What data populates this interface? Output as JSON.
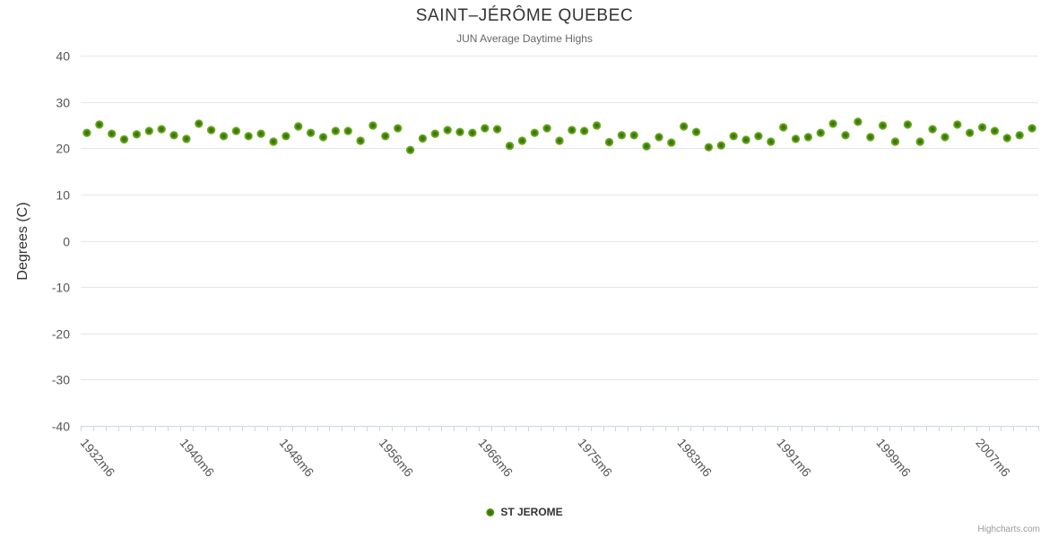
{
  "chart_data": {
    "type": "scatter",
    "title": "SAINT–JÉRÔME QUEBEC",
    "subtitle": "JUN Average Daytime Highs",
    "ylabel": "Degrees (C)",
    "ylim": [
      -40,
      40
    ],
    "yticks": [
      40,
      30,
      20,
      10,
      0,
      -10,
      -20,
      -30,
      -40
    ],
    "grid": "horizontal-only",
    "legend_position": "bottom-center",
    "xtick_label_every": 8,
    "categories": [
      "1932m6",
      "1933m6",
      "1934m6",
      "1935m6",
      "1936m6",
      "1937m6",
      "1938m6",
      "1939m6",
      "1940m6",
      "1941m6",
      "1942m6",
      "1943m6",
      "1944m6",
      "1945m6",
      "1946m6",
      "1947m6",
      "1948m6",
      "1949m6",
      "1950m6",
      "1951m6",
      "1952m6",
      "1953m6",
      "1954m6",
      "1955m6",
      "1956m6",
      "1957m6",
      "1959m6",
      "1960m6",
      "1961m6",
      "1962m6",
      "1964m6",
      "1965m6",
      "1966m6",
      "1967m6",
      "1968m6",
      "1969m6",
      "1971m6",
      "1972m6",
      "1973m6",
      "1974m6",
      "1975m6",
      "1976m6",
      "1977m6",
      "1978m6",
      "1979m6",
      "1980m6",
      "1981m6",
      "1982m6",
      "1983m6",
      "1984m6",
      "1985m6",
      "1986m6",
      "1987m6",
      "1988m6",
      "1989m6",
      "1990m6",
      "1991m6",
      "1992m6",
      "1993m6",
      "1994m6",
      "1995m6",
      "1996m6",
      "1997m6",
      "1998m6",
      "1999m6",
      "2000m6",
      "2001m6",
      "2002m6",
      "2003m6",
      "2004m6",
      "2005m6",
      "2006m6",
      "2007m6",
      "2008m6",
      "2009m6",
      "2010m6",
      "2011m6"
    ],
    "series": [
      {
        "name": "ST JEROME",
        "values": [
          23.3,
          25.1,
          23.1,
          21.9,
          23.0,
          23.7,
          24.1,
          22.8,
          22.0,
          25.3,
          23.9,
          22.6,
          23.7,
          22.6,
          23.1,
          21.4,
          22.6,
          24.7,
          23.3,
          22.4,
          23.7,
          23.7,
          21.6,
          24.9,
          22.6,
          24.3,
          19.6,
          22.1,
          23.1,
          23.9,
          23.5,
          23.3,
          24.3,
          24.1,
          20.5,
          21.6,
          23.3,
          24.3,
          21.6,
          23.9,
          23.7,
          24.9,
          21.3,
          22.8,
          22.8,
          20.4,
          22.4,
          21.2,
          24.7,
          23.5,
          20.2,
          20.6,
          22.6,
          21.8,
          22.6,
          21.4,
          24.5,
          22.0,
          22.4,
          23.3,
          25.3,
          22.8,
          25.7,
          22.4,
          24.9,
          21.4,
          25.1,
          21.4,
          24.1,
          22.4,
          25.1,
          23.3,
          24.5,
          23.7,
          22.2,
          22.8,
          24.3
        ]
      }
    ]
  },
  "legend": {
    "label": "ST JEROME"
  },
  "credit": "Highcharts.com",
  "colors": {
    "marker_outer": "#76b22c",
    "marker_mid": "#3f7e05",
    "marker_core": "#2f6f00",
    "gridline": "#e6e6e6",
    "axis_line": "#ccd6eb",
    "title": "#333333",
    "subtitle": "#666666",
    "axis_label": "#555555"
  }
}
